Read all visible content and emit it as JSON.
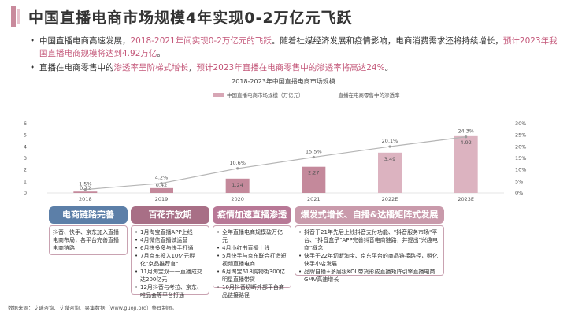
{
  "page": {
    "title": "中国直播电商市场规模4年实现0-2万亿元飞跃",
    "bullets": [
      {
        "parts": [
          {
            "text": "中国直播电商高速发展，",
            "hl": false
          },
          {
            "text": "2018-2021年间实现0-2万亿元的飞跃",
            "hl": true
          },
          {
            "text": "。随着社媒经济发展和疫情影响，电商消费需求还将持续增长，",
            "hl": false
          },
          {
            "text": "预计2023年我国直播电商规模将达到4.92万亿",
            "hl": true
          },
          {
            "text": "。",
            "hl": false
          }
        ]
      },
      {
        "parts": [
          {
            "text": "直播在电商零售中的",
            "hl": false
          },
          {
            "text": "渗透率呈阶梯式增长",
            "hl": true
          },
          {
            "text": "，",
            "hl": false
          },
          {
            "text": "预计2023年直播在电商零售中的渗透率将高达24%",
            "hl": true
          },
          {
            "text": "。",
            "hl": false
          }
        ]
      }
    ],
    "source": "数据来源：艾瑞咨询、艾媒咨询、果集数据（www.guoji.pro）整理制图。"
  },
  "chart_data": {
    "type": "bar",
    "title": "2018-2023年中国直播电商市场规模",
    "categories": [
      "2018",
      "2019",
      "2020",
      "2021",
      "2022E",
      "2023E"
    ],
    "series": [
      {
        "name": "中国直播电商市场规模（万亿元）",
        "type": "bar",
        "axis": "left",
        "values": [
          0.12,
          0.42,
          1.24,
          2.27,
          3.49,
          4.92
        ],
        "labels": [
          "0.12",
          "0.42",
          "1.24",
          "2.27",
          "3.49",
          "4.92"
        ]
      },
      {
        "name": "直播在电商零售中的渗透率",
        "type": "line",
        "axis": "right",
        "values": [
          1.5,
          4.2,
          10.6,
          15.5,
          20.1,
          24.3
        ],
        "labels": [
          "1.5%",
          "4.2%",
          "10.6%",
          "15.5%",
          "20.1%",
          "24.3%"
        ]
      }
    ],
    "y_left": {
      "min": 0,
      "max": 6,
      "ticks": [
        "0",
        "1",
        "2",
        "3",
        "4",
        "5",
        "6"
      ]
    },
    "y_right": {
      "min": 0,
      "max": 30,
      "ticks": [
        "0%",
        "5%",
        "10%",
        "15%",
        "20%",
        "25%",
        "30%"
      ]
    },
    "legend_position": "top-center",
    "colors": {
      "bar": "#c4899b",
      "bar_light": "#dcb3c0",
      "line": "#b5b5b5"
    }
  },
  "phases": [
    {
      "title": "电商链路完善",
      "color": "#5c7fa8",
      "style": "plain",
      "items": [
        "抖音、快手、京东加入直播电商布局，各平台完善直播电商链路"
      ]
    },
    {
      "title": "百花齐放期",
      "color": "#a86f86",
      "style": "list",
      "items": [
        "1月淘宝直播APP上线",
        "4月微信直播试运营",
        "6月拼多多与快手打通",
        "7月京东投入10亿元孵化\"京品推荐官\"",
        "11月淘宝双十一直播成交达200亿元",
        "12月抖音与考拉、京东、唯品会等平台打通"
      ]
    },
    {
      "title": "疫情加速直播渗透",
      "color": "#b87896",
      "style": "list",
      "items": [
        "全年直播电商规模破万亿元",
        "4月小红书直播上线",
        "5月快手与京东联合打造短视频直播电商",
        "6月淘宝618购物街300亿明星直播带货",
        "10月抖音切断外部平台商品链接路径"
      ]
    },
    {
      "title": "爆发式增长、自播&达播矩阵式发展",
      "color": "#c99aab",
      "style": "list",
      "items": [
        "抖音于21年先后上线抖音支付功能、\"抖音服务市场\"平台、\"抖音盒子\"APP完善抖音电商链路，并提出\"兴趣电商\"概念",
        "快手于22年切断淘宝、京东平台的商品链接路径，孵化快手小店发展",
        "品牌自播+多层级KOL带货形成直播矩阵引擎直播电商GMV高速增长"
      ]
    }
  ]
}
